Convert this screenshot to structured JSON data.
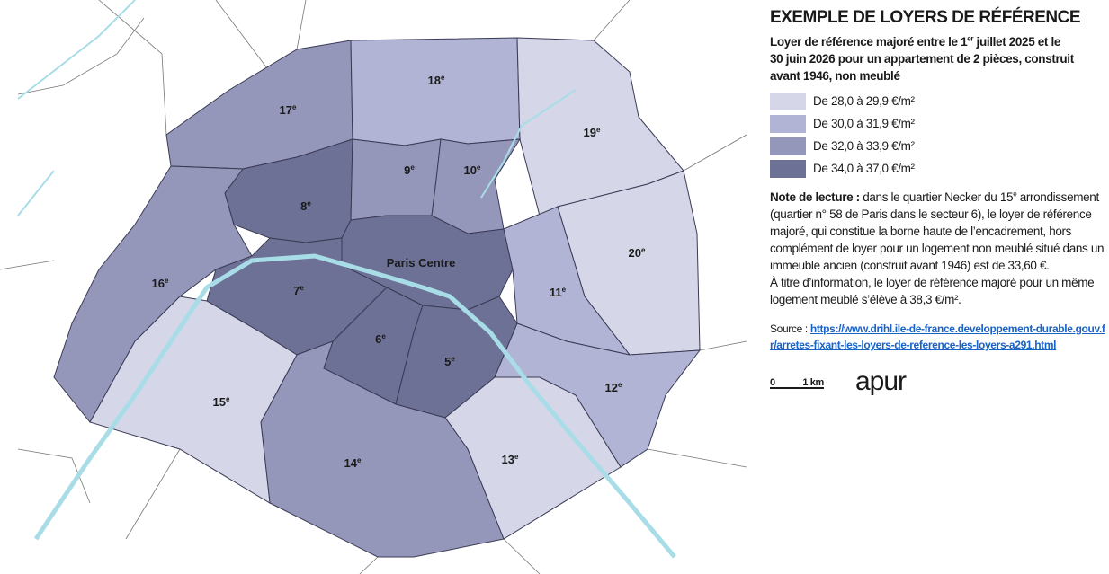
{
  "header": {
    "title": "EXEMPLE DE LOYERS DE RÉFÉRENCE",
    "subtitle": {
      "before": "Loyer de référence majoré entre le 1",
      "sup": "er",
      "after": " juillet 2025 et le 30 juin 2026 pour un appartement de 2 pièces, construit avant 1946, non meublé"
    }
  },
  "legend": {
    "items": [
      {
        "label": "De 28,0 à 29,9 €/m²",
        "color": "#d5d7e9"
      },
      {
        "label": "De 30,0 à 31,9 €/m²",
        "color": "#b1b4d4"
      },
      {
        "label": "De 32,0 à 33,9 €/m²",
        "color": "#9597ba"
      },
      {
        "label": "De 34,0 à 37,0 €/m²",
        "color": "#6d7196"
      }
    ]
  },
  "note": {
    "heading": "Note de lecture :",
    "before": " dans le quartier Necker du 15",
    "sup": "e",
    "after": " arrondissement (quartier n° 58 de Paris dans le secteur 6), le loyer de référence majoré, qui constitue la borne haute de l’encadrement, hors complément de loyer pour un logement non meublé situé dans un immeuble ancien (construit avant 1946) est de 33,60 €.",
    "second": "À titre d’information, le loyer de référence majoré pour un même logement meublé s’élève à 38,3 €/m²."
  },
  "source": {
    "label": "Source :",
    "url": "https://www.drihl.ile-de-france.developpement-durable.gouv.fr/arretes-fixant-les-loyers-de-reference-les-loyers-a291.html"
  },
  "scale": {
    "start": "0",
    "end": "1 km"
  },
  "logo": "apur",
  "map": {
    "labels": [
      {
        "number": "18",
        "sup": "e"
      },
      {
        "number": "17",
        "sup": "e"
      },
      {
        "number": "9",
        "sup": "e"
      },
      {
        "number": "10",
        "sup": "e"
      },
      {
        "number": "19",
        "sup": "e"
      },
      {
        "number": "8",
        "sup": "e"
      },
      {
        "name": "Paris Centre"
      },
      {
        "number": "20",
        "sup": "e"
      },
      {
        "number": "16",
        "sup": "e"
      },
      {
        "number": "7",
        "sup": "e"
      },
      {
        "number": "11",
        "sup": "e"
      },
      {
        "number": "6",
        "sup": "e"
      },
      {
        "number": "5",
        "sup": "e"
      },
      {
        "number": "12",
        "sup": "e"
      },
      {
        "number": "15",
        "sup": "e"
      },
      {
        "number": "14",
        "sup": "e"
      },
      {
        "number": "13",
        "sup": "e"
      }
    ]
  }
}
